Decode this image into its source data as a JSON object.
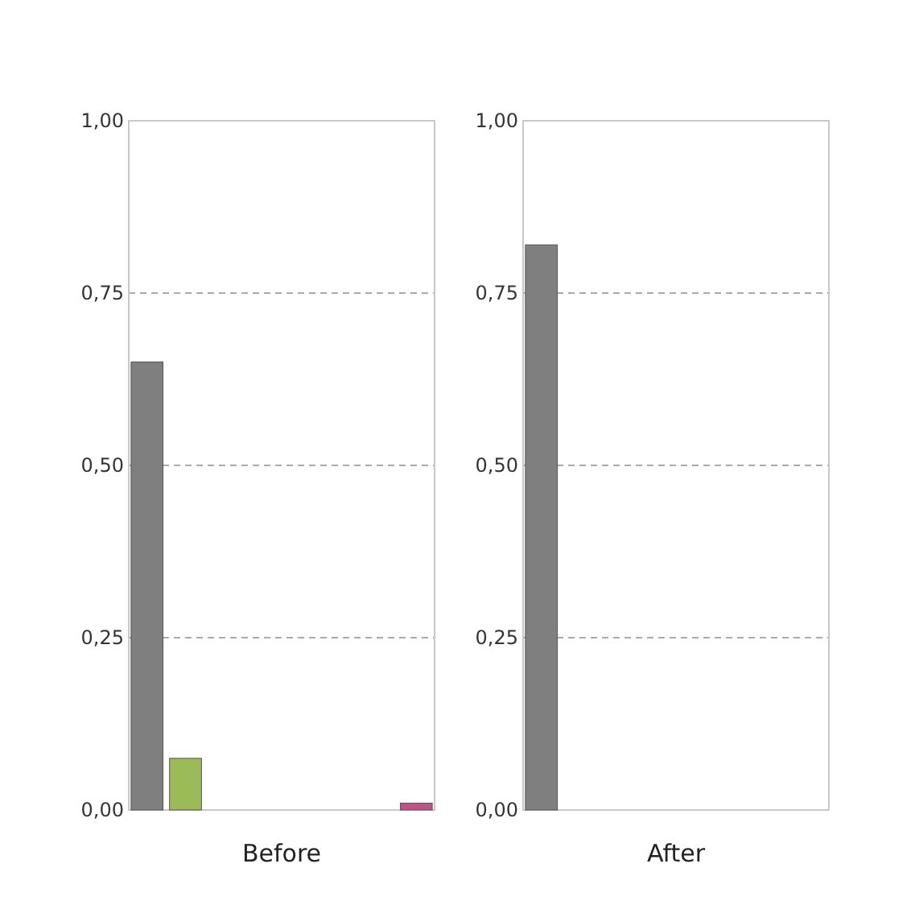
{
  "chart_data": [
    {
      "type": "bar",
      "xlabel": "Before",
      "categories": [
        null,
        null,
        null,
        null,
        null,
        null,
        null,
        null
      ],
      "values": [
        0.65,
        0.075,
        null,
        null,
        null,
        null,
        null,
        0.01
      ],
      "colors": [
        "#7f7f7f",
        "#9bbb59",
        null,
        null,
        null,
        null,
        null,
        "#c0508a"
      ],
      "ylim": [
        0,
        1
      ],
      "yticks": [
        {
          "value": 0,
          "label": "0,00"
        },
        {
          "value": 0.25,
          "label": "0,25"
        },
        {
          "value": 0.5,
          "label": "0,50"
        },
        {
          "value": 0.75,
          "label": "0,75"
        },
        {
          "value": 1,
          "label": "1,00"
        }
      ],
      "grid": "y",
      "line_style": "dashed"
    },
    {
      "type": "bar",
      "xlabel": "After",
      "categories": [
        null,
        null,
        null,
        null,
        null,
        null,
        null,
        null
      ],
      "values": [
        0.82,
        null,
        null,
        null,
        null,
        null,
        null,
        null
      ],
      "colors": [
        "#7f7f7f",
        null,
        null,
        null,
        null,
        null,
        null,
        null
      ],
      "ylim": [
        0,
        1
      ],
      "yticks": [
        {
          "value": 0,
          "label": "0,00"
        },
        {
          "value": 0.25,
          "label": "0,25"
        },
        {
          "value": 0.5,
          "label": "0,50"
        },
        {
          "value": 0.75,
          "label": "0,75"
        },
        {
          "value": 1,
          "label": "1,00"
        }
      ],
      "grid": "y",
      "line_style": "dashed"
    }
  ]
}
